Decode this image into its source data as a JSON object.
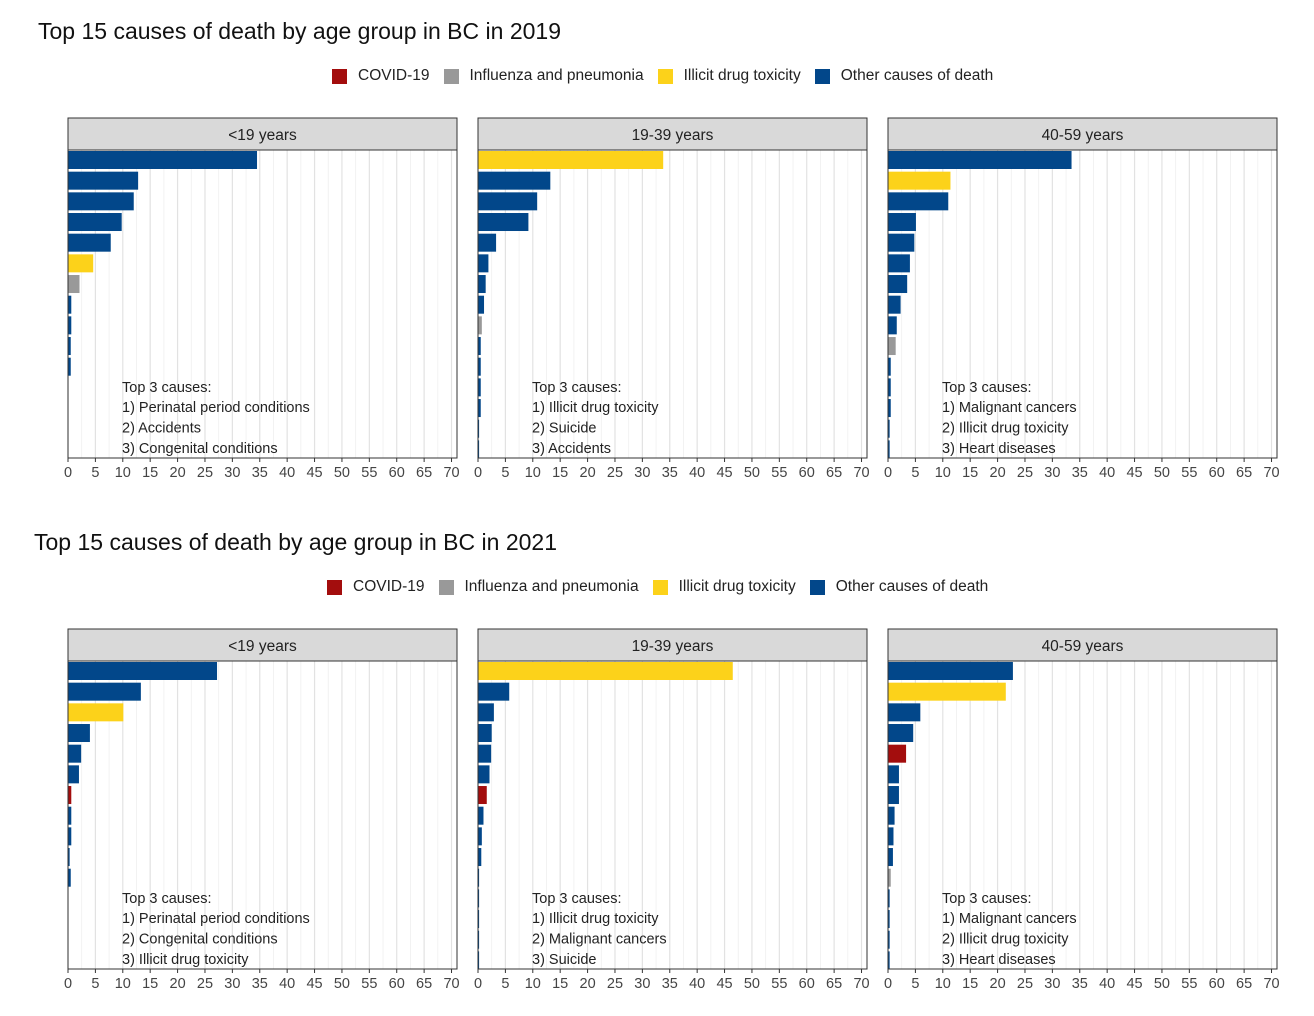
{
  "colors": {
    "COVID-19": "#a30d0d",
    "Influenza and pneumonia": "#999999",
    "Illicit drug toxicity": "#fcd21a",
    "Other causes of death": "#02478a"
  },
  "chart_data": [
    {
      "type": "bar",
      "orientation": "horizontal",
      "title": "Top 15 causes of death by age group in BC in 2019",
      "legend": {
        "position": "top",
        "entries": [
          "COVID-19",
          "Influenza and pneumonia",
          "Illicit drug toxicity",
          "Other causes of death"
        ]
      },
      "xlim": [
        0,
        71
      ],
      "xticks": [
        0,
        5,
        10,
        15,
        20,
        25,
        30,
        35,
        40,
        45,
        50,
        55,
        60,
        65,
        70
      ],
      "grid": true,
      "panels": [
        {
          "label": "<19 years",
          "values": [
            34.5,
            12.8,
            12.0,
            9.8,
            7.8,
            4.6,
            2.1,
            0.6,
            0.6,
            0.5,
            0.5,
            0,
            0,
            0,
            0
          ],
          "groups": [
            "Other causes of death",
            "Other causes of death",
            "Other causes of death",
            "Other causes of death",
            "Other causes of death",
            "Illicit drug toxicity",
            "Influenza and pneumonia",
            "Other causes of death",
            "Other causes of death",
            "Other causes of death",
            "Other causes of death",
            "Other causes of death",
            "Other causes of death",
            "Other causes of death",
            "Other causes of death"
          ],
          "note": {
            "heading": "Top 3 causes:",
            "lines": [
              "1) Perinatal period conditions",
              "2) Accidents",
              "3) Congenital conditions"
            ]
          }
        },
        {
          "label": "19-39 years",
          "values": [
            33.8,
            13.2,
            10.8,
            9.2,
            3.3,
            1.9,
            1.4,
            1.1,
            0.7,
            0.5,
            0.5,
            0.5,
            0.5,
            0.2,
            0.2
          ],
          "groups": [
            "Illicit drug toxicity",
            "Other causes of death",
            "Other causes of death",
            "Other causes of death",
            "Other causes of death",
            "Other causes of death",
            "Other causes of death",
            "Other causes of death",
            "Influenza and pneumonia",
            "Other causes of death",
            "Other causes of death",
            "Other causes of death",
            "Other causes of death",
            "Other causes of death",
            "Other causes of death"
          ],
          "note": {
            "heading": "Top 3 causes:",
            "lines": [
              "1) Illicit drug toxicity",
              "2) Suicide",
              "3) Accidents"
            ]
          }
        },
        {
          "label": "40-59 years",
          "values": [
            33.5,
            11.4,
            11.0,
            5.1,
            4.8,
            4.0,
            3.5,
            2.3,
            1.6,
            1.4,
            0.5,
            0.5,
            0.5,
            0.3,
            0.3
          ],
          "groups": [
            "Other causes of death",
            "Illicit drug toxicity",
            "Other causes of death",
            "Other causes of death",
            "Other causes of death",
            "Other causes of death",
            "Other causes of death",
            "Other causes of death",
            "Other causes of death",
            "Influenza and pneumonia",
            "Other causes of death",
            "Other causes of death",
            "Other causes of death",
            "Other causes of death",
            "Other causes of death"
          ],
          "note": {
            "heading": "Top 3 causes:",
            "lines": [
              "1) Malignant cancers",
              "2) Illicit drug toxicity",
              "3) Heart diseases"
            ]
          }
        }
      ]
    },
    {
      "type": "bar",
      "orientation": "horizontal",
      "title": "Top 15 causes of death by age group in BC in 2021",
      "legend": {
        "position": "top",
        "entries": [
          "COVID-19",
          "Influenza and pneumonia",
          "Illicit drug toxicity",
          "Other causes of death"
        ]
      },
      "xlim": [
        0,
        71
      ],
      "xticks": [
        0,
        5,
        10,
        15,
        20,
        25,
        30,
        35,
        40,
        45,
        50,
        55,
        60,
        65,
        70
      ],
      "grid": true,
      "panels": [
        {
          "label": "<19 years",
          "values": [
            27.2,
            13.3,
            10.1,
            4.0,
            2.4,
            2.0,
            0.6,
            0.6,
            0.6,
            0.3,
            0.5,
            0,
            0,
            0,
            0
          ],
          "groups": [
            "Other causes of death",
            "Other causes of death",
            "Illicit drug toxicity",
            "Other causes of death",
            "Other causes of death",
            "Other causes of death",
            "COVID-19",
            "Other causes of death",
            "Other causes of death",
            "Other causes of death",
            "Other causes of death",
            "Other causes of death",
            "Other causes of death",
            "Other causes of death",
            "Other causes of death"
          ],
          "note": {
            "heading": "Top 3 causes:",
            "lines": [
              "1) Perinatal period conditions",
              "2) Congenital conditions",
              "3) Illicit drug toxicity"
            ]
          }
        },
        {
          "label": "19-39 years",
          "values": [
            46.5,
            5.7,
            2.9,
            2.5,
            2.4,
            2.1,
            1.6,
            1.0,
            0.7,
            0.6,
            0.2,
            0.2,
            0.2,
            0.2,
            0.2
          ],
          "groups": [
            "Illicit drug toxicity",
            "Other causes of death",
            "Other causes of death",
            "Other causes of death",
            "Other causes of death",
            "Other causes of death",
            "COVID-19",
            "Other causes of death",
            "Other causes of death",
            "Other causes of death",
            "Other causes of death",
            "Other causes of death",
            "Other causes of death",
            "Other causes of death",
            "Other causes of death"
          ],
          "note": {
            "heading": "Top 3 causes:",
            "lines": [
              "1) Illicit drug toxicity",
              "2) Malignant cancers",
              "3) Suicide"
            ]
          }
        },
        {
          "label": "40-59 years",
          "values": [
            22.8,
            21.5,
            5.9,
            4.6,
            3.3,
            2.0,
            2.0,
            1.2,
            1.0,
            0.9,
            0.5,
            0.3,
            0.3,
            0.3,
            0.3
          ],
          "groups": [
            "Other causes of death",
            "Illicit drug toxicity",
            "Other causes of death",
            "Other causes of death",
            "COVID-19",
            "Other causes of death",
            "Other causes of death",
            "Other causes of death",
            "Other causes of death",
            "Other causes of death",
            "Influenza and pneumonia",
            "Other causes of death",
            "Other causes of death",
            "Other causes of death",
            "Other causes of death"
          ],
          "note": {
            "heading": "Top 3 causes:",
            "lines": [
              "1) Malignant cancers",
              "2) Illicit drug toxicity",
              "3) Heart diseases"
            ]
          }
        }
      ]
    }
  ]
}
